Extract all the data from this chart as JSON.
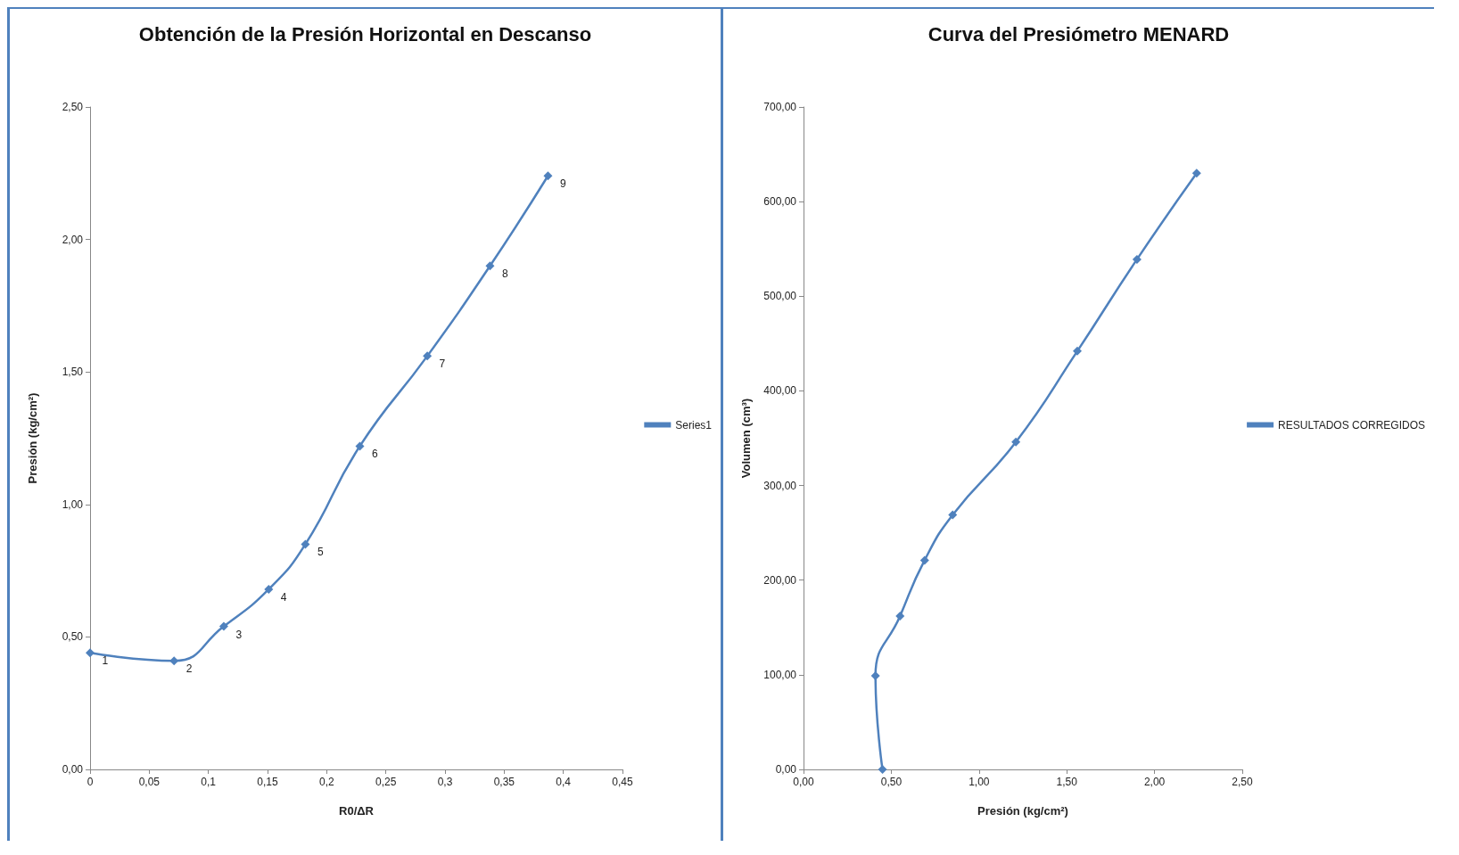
{
  "chart_data": [
    {
      "type": "line",
      "title": "Obtención de la Presión Horizontal en Descanso",
      "xlabel": "R0/ΔR",
      "ylabel": "Presión (kg/cm²)",
      "marker": "diamond",
      "legend": "right",
      "grid": false,
      "x": [
        0,
        0.071,
        0.113,
        0.151,
        0.182,
        0.228,
        0.285,
        0.338,
        0.387
      ],
      "series": [
        {
          "name": "Series1",
          "color": "#4f81bd",
          "values": [
            0.44,
            0.41,
            0.54,
            0.68,
            0.85,
            1.22,
            1.56,
            1.9,
            2.24
          ]
        }
      ],
      "annotations": [
        {
          "text": "1",
          "x": 0,
          "y": 0.44
        },
        {
          "text": "2",
          "x": 0.071,
          "y": 0.41
        },
        {
          "text": "3",
          "x": 0.113,
          "y": 0.54
        },
        {
          "text": "4",
          "x": 0.151,
          "y": 0.68
        },
        {
          "text": "5",
          "x": 0.182,
          "y": 0.85
        },
        {
          "text": "6",
          "x": 0.228,
          "y": 1.22
        },
        {
          "text": "7",
          "x": 0.285,
          "y": 1.56
        },
        {
          "text": "8",
          "x": 0.338,
          "y": 1.9
        },
        {
          "text": "9",
          "x": 0.387,
          "y": 2.24
        }
      ],
      "xlim": [
        0,
        0.45
      ],
      "xticks": [
        0,
        {
          "value": 0.05,
          "label": "0,05"
        },
        {
          "value": 0.1,
          "label": "0,1"
        },
        {
          "value": 0.15,
          "label": "0,15"
        },
        {
          "value": 0.2,
          "label": "0,2"
        },
        {
          "value": 0.25,
          "label": "0,25"
        },
        {
          "value": 0.3,
          "label": "0,3"
        },
        {
          "value": 0.35,
          "label": "0,35"
        },
        {
          "value": 0.4,
          "label": "0,4"
        },
        {
          "value": 0.45,
          "label": "0,45"
        }
      ],
      "ylim": [
        0,
        2.5
      ],
      "yticks": [
        {
          "value": 0,
          "label": "0,00"
        },
        {
          "value": 0.5,
          "label": "0,50"
        },
        {
          "value": 1,
          "label": "1,00"
        },
        {
          "value": 1.5,
          "label": "1,50"
        },
        {
          "value": 2,
          "label": "2,00"
        },
        {
          "value": 2.5,
          "label": "2,50"
        }
      ]
    },
    {
      "type": "line",
      "title": "Curva del Presiómetro MENARD",
      "xlabel": "Presión (kg/cm²)",
      "ylabel": "Volumen (cm³)",
      "marker": "diamond",
      "legend": "right",
      "grid": false,
      "series": [
        {
          "name": "RESULTADOS CORREGIDOS",
          "color": "#4f81bd",
          "x": [
            0.45,
            0.41,
            0.55,
            0.69,
            0.85,
            1.21,
            1.56,
            1.9,
            2.24
          ],
          "values": [
            0,
            99,
            162,
            221,
            269,
            346,
            442,
            539,
            630
          ]
        }
      ],
      "xlim": [
        0,
        2.5
      ],
      "xticks": [
        {
          "value": 0,
          "label": "0,00"
        },
        {
          "value": 0.5,
          "label": "0,50"
        },
        {
          "value": 1,
          "label": "1,00"
        },
        {
          "value": 1.5,
          "label": "1,50"
        },
        {
          "value": 2,
          "label": "2,00"
        },
        {
          "value": 2.5,
          "label": "2,50"
        }
      ],
      "ylim": [
        0,
        700
      ],
      "yticks": [
        {
          "value": 0,
          "label": "0,00"
        },
        {
          "value": 100,
          "label": "100,00"
        },
        {
          "value": 200,
          "label": "200,00"
        },
        {
          "value": 300,
          "label": "300,00"
        },
        {
          "value": 400,
          "label": "400,00"
        },
        {
          "value": 500,
          "label": "500,00"
        },
        {
          "value": 600,
          "label": "600,00"
        },
        {
          "value": 700,
          "label": "700,00"
        }
      ]
    }
  ]
}
